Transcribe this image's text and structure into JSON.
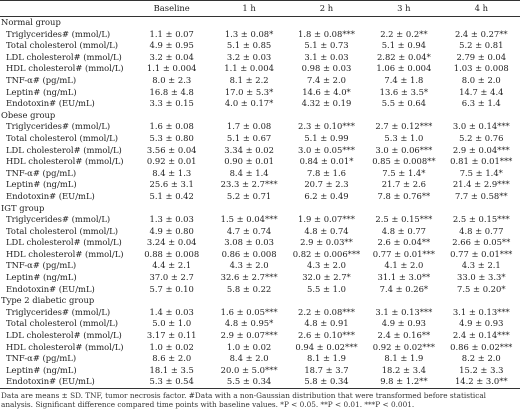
{
  "table": {
    "headers": [
      "",
      "Baseline",
      "1 h",
      "2 h",
      "3 h",
      "4 h"
    ],
    "groups": [
      {
        "name": "Normal group",
        "rows": [
          {
            "label": "Triglycerides# (mmol/L)",
            "values": [
              "1.1 ± 0.07",
              "1.3 ± 0.08*",
              "1.8 ± 0.08***",
              "2.2 ± 0.2**",
              "2.4 ± 0.27**"
            ]
          },
          {
            "label": "Total cholesterol (mmol/L)",
            "values": [
              "4.9 ± 0.95",
              "5.1 ± 0.85",
              "5.1 ± 0.73",
              "5.1 ± 0.94",
              "5.2 ± 0.81"
            ]
          },
          {
            "label": "LDL cholesterol# (mmol/L)",
            "values": [
              "3.2 ± 0.04",
              "3.2 ± 0.03",
              "3.1 ± 0.03",
              "2.82 ± 0.04*",
              "2.79 ± 0.04"
            ]
          },
          {
            "label": "HDL cholesterol# (mmol/L)",
            "values": [
              "1.1 ± 0.004",
              "1.1 ± 0.004",
              "0.98 ± 0.03",
              "1.06 ± 0.004",
              "1.03 ± 0.008"
            ]
          },
          {
            "label": "TNF-α# (pg/mL)",
            "values": [
              "8.0 ± 2.3",
              "8.1 ± 2.2",
              "7.4 ± 2.0",
              "7.4 ± 1.8",
              "8.0 ± 2.0"
            ]
          },
          {
            "label": "Leptin# (ng/mL)",
            "values": [
              "16.8 ± 4.8",
              "17.0 ± 5.3*",
              "14.6 ± 4.0*",
              "13.6 ± 3.5*",
              "14.7 ± 4.4"
            ]
          },
          {
            "label": "Endotoxin# (EU/mL)",
            "values": [
              "3.3 ± 0.15",
              "4.0 ± 0.17*",
              "4.32 ± 0.19",
              "5.5 ± 0.64",
              "6.3 ± 1.4"
            ]
          }
        ]
      },
      {
        "name": "Obese group",
        "rows": [
          {
            "label": "Triglycerides# (mmol/L)",
            "values": [
              "1.6 ± 0.08",
              "1.7 ± 0.08",
              "2.3 ± 0.10***",
              "2.7 ± 0.12***",
              "3.0 ± 0.14***"
            ]
          },
          {
            "label": "Total cholesterol (mmol/L)",
            "values": [
              "5.3 ± 0.80",
              "5.1 ± 0.67",
              "5.1 ± 0.99",
              "5.3 ± 1.0",
              "5.2 ± 0.76"
            ]
          },
          {
            "label": "LDL cholesterol# (mmol/L)",
            "values": [
              "3.56 ± 0.04",
              "3.34 ± 0.02",
              "3.0 ± 0.05***",
              "3.0 ± 0.06***",
              "2.9 ± 0.04***"
            ]
          },
          {
            "label": "HDL cholesterol# (mmol/L)",
            "values": [
              "0.92 ± 0.01",
              "0.90 ± 0.01",
              "0.84 ± 0.01*",
              "0.85 ± 0.008**",
              "0.81 ± 0.01***"
            ]
          },
          {
            "label": "TNF-α# (pg/mL)",
            "values": [
              "8.4 ± 1.3",
              "8.4 ± 1.4",
              "7.8 ± 1.6",
              "7.5 ± 1.4*",
              "7.5 ± 1.4*"
            ]
          },
          {
            "label": "Leptin# (ng/mL)",
            "values": [
              "25.6 ± 3.1",
              "23.3 ± 2.7***",
              "20.7 ± 2.3",
              "21.7 ± 2.6",
              "21.4 ± 2.9***"
            ]
          },
          {
            "label": "Endotoxin# (EU/mL)",
            "values": [
              "5.1 ± 0.42",
              "5.2 ± 0.71",
              "6.2 ± 0.49",
              "7.8 ± 0.76**",
              "7.7 ± 0.58**"
            ]
          }
        ]
      },
      {
        "name": "IGT group",
        "rows": [
          {
            "label": "Triglycerides# (mmol/L)",
            "values": [
              "1.3 ± 0.03",
              "1.5 ± 0.04***",
              "1.9 ± 0.07***",
              "2.5 ± 0.15***",
              "2.5 ± 0.15***"
            ]
          },
          {
            "label": "Total cholesterol (mmol/L)",
            "values": [
              "4.9 ± 0.80",
              "4.7 ± 0.74",
              "4.8 ± 0.74",
              "4.8 ± 0.77",
              "4.8 ± 0.77"
            ]
          },
          {
            "label": "LDL cholesterol# (mmol/L)",
            "values": [
              "3.24 ± 0.04",
              "3.08 ± 0.03",
              "2.9 ± 0.03**",
              "2.6 ± 0.04**",
              "2.66 ± 0.05**"
            ]
          },
          {
            "label": "HDL cholesterol# (mmol/L)",
            "values": [
              "0.88 ± 0.008",
              "0.86 ± 0.008",
              "0.82 ± 0.006***",
              "0.77 ± 0.01***",
              "0.77 ± 0.01***"
            ]
          },
          {
            "label": "TNF-α# (pg/mL)",
            "values": [
              "4.4 ± 2.1",
              "4.3 ± 2.0",
              "4.3 ± 2.0",
              "4.1 ± 2.0",
              "4.3 ± 2.1"
            ]
          },
          {
            "label": "Leptin# (ng/mL)",
            "values": [
              "37.0 ± 2.7",
              "32.6 ± 2.7***",
              "32.0 ± 2.7*",
              "31.1 ± 3.0**",
              "33.0 ± 3.3*"
            ]
          },
          {
            "label": "Endotoxin# (EU/mL)",
            "values": [
              "5.7 ± 0.10",
              "5.8 ± 0.22",
              "5.5 ± 1.0",
              "7.4 ± 0.26*",
              "7.5 ± 0.20*"
            ]
          }
        ]
      },
      {
        "name": "Type 2 diabetic group",
        "rows": [
          {
            "label": "Triglycerides# (mmol/L)",
            "values": [
              "1.4 ± 0.03",
              "1.6 ± 0.05***",
              "2.2 ± 0.08***",
              "3.1 ± 0.13***",
              "3.1 ± 0.13***"
            ]
          },
          {
            "label": "Total cholesterol (mmol/L)",
            "values": [
              "5.0 ± 1.0",
              "4.8 ± 0.95*",
              "4.8 ± 0.91",
              "4.9 ± 0.93",
              "4.9 ± 0.93"
            ]
          },
          {
            "label": "LDL cholesterol# (mmol/L)",
            "values": [
              "3.17 ± 0.11",
              "2.9 ± 0.07***",
              "2.6 ± 0.10***",
              "2.4 ± 0.16**",
              "2.4 ± 0.14***"
            ]
          },
          {
            "label": "HDL cholesterol# (mmol/L)",
            "values": [
              "1.0 ± 0.02",
              "1.0 ± 0.02",
              "0.94 ± 0.02***",
              "0.92 ± 0.02***",
              "0.86 ± 0.02***"
            ]
          },
          {
            "label": "TNF-α# (pg/mL)",
            "values": [
              "8.6 ± 2.0",
              "8.4 ± 2.0",
              "8.1 ± 1.9",
              "8.1 ± 1.9",
              "8.2 ± 2.0"
            ]
          },
          {
            "label": "Leptin# (ng/mL)",
            "values": [
              "18.1 ± 3.5",
              "20.0 ± 5.0***",
              "18.7 ± 3.7",
              "18.2 ± 3.4",
              "15.2 ± 3.3"
            ]
          },
          {
            "label": "Endotoxin# (EU/mL)",
            "values": [
              "5.3 ± 0.54",
              "5.5 ± 0.34",
              "5.8 ± 0.34",
              "9.8 ± 1.2**",
              "14.2 ± 3.0**"
            ]
          }
        ]
      }
    ]
  },
  "footnote": "Data are means ± SD. TNF, tumor necrosis factor. #Data with a non-Gaussian distribution that were transformed before statistical analysis. Significant difference compared time points with baseline values. *P < 0.05. **P < 0.01. ***P < 0.001."
}
